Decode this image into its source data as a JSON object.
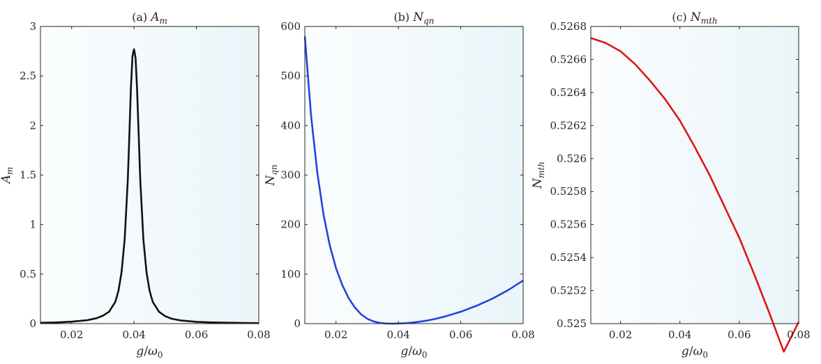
{
  "chart_data": [
    {
      "type": "line",
      "title_prefix": "(a)",
      "title_symbol": "A",
      "title_sub": "m",
      "xlabel_symbol": "g",
      "xlabel_sep": "/",
      "xlabel_denom": "ω",
      "xlabel_denom_sub": "0",
      "ylabel_symbol": "A",
      "ylabel_sub": "m",
      "xlim": [
        0.01,
        0.08
      ],
      "ylim": [
        0,
        3
      ],
      "xticks": [
        0.02,
        0.04,
        0.06,
        0.08
      ],
      "xtick_labels": [
        "0.02",
        "0.04",
        "0.06",
        "0.08"
      ],
      "yticks": [
        0,
        0.5,
        1,
        1.5,
        2,
        2.5,
        3
      ],
      "ytick_labels": [
        "0",
        "0.5",
        "1",
        "1.5",
        "2",
        "2.5",
        "3"
      ],
      "grid": false,
      "line_color": "#111111",
      "x": [
        0.01,
        0.015,
        0.02,
        0.025,
        0.028,
        0.03,
        0.032,
        0.034,
        0.035,
        0.036,
        0.037,
        0.038,
        0.0385,
        0.039,
        0.0395,
        0.04,
        0.0405,
        0.041,
        0.0415,
        0.042,
        0.043,
        0.044,
        0.045,
        0.046,
        0.048,
        0.05,
        0.052,
        0.055,
        0.06,
        0.065,
        0.07,
        0.075,
        0.08
      ],
      "y": [
        0.008,
        0.012,
        0.02,
        0.035,
        0.055,
        0.08,
        0.12,
        0.22,
        0.33,
        0.52,
        0.85,
        1.45,
        1.9,
        2.38,
        2.7,
        2.77,
        2.68,
        2.35,
        1.9,
        1.45,
        0.85,
        0.52,
        0.33,
        0.22,
        0.12,
        0.075,
        0.05,
        0.032,
        0.018,
        0.012,
        0.009,
        0.007,
        0.005
      ]
    },
    {
      "type": "line",
      "title_prefix": "(b)",
      "title_symbol": "N",
      "title_sub": "qn",
      "xlabel_symbol": "g",
      "xlabel_sep": "/",
      "xlabel_denom": "ω",
      "xlabel_denom_sub": "0",
      "ylabel_symbol": "N",
      "ylabel_sub": "qn",
      "xlim": [
        0.01,
        0.08
      ],
      "ylim": [
        0,
        600
      ],
      "xticks": [
        0.02,
        0.04,
        0.06,
        0.08
      ],
      "xtick_labels": [
        "0.02",
        "0.04",
        "0.06",
        "0.08"
      ],
      "yticks": [
        0,
        100,
        200,
        300,
        400,
        500,
        600
      ],
      "ytick_labels": [
        "0",
        "100",
        "200",
        "300",
        "400",
        "500",
        "600"
      ],
      "grid": false,
      "line_color": "#2244dd",
      "x": [
        0.01,
        0.012,
        0.014,
        0.016,
        0.018,
        0.02,
        0.022,
        0.024,
        0.026,
        0.028,
        0.03,
        0.032,
        0.034,
        0.036,
        0.038,
        0.04,
        0.042,
        0.044,
        0.046,
        0.048,
        0.05,
        0.052,
        0.055,
        0.06,
        0.065,
        0.07,
        0.075,
        0.08
      ],
      "y": [
        580,
        420,
        305,
        220,
        158,
        112,
        78,
        52,
        33,
        19,
        10,
        4.5,
        1.5,
        0.3,
        0,
        0.2,
        0.8,
        1.8,
        3.2,
        5,
        7.2,
        9.8,
        14.5,
        24,
        36,
        50,
        67,
        87
      ]
    },
    {
      "type": "line",
      "title_prefix": "(c)",
      "title_symbol": "N",
      "title_sub": "mth",
      "xlabel_symbol": "g",
      "xlabel_sep": "/",
      "xlabel_denom": "ω",
      "xlabel_denom_sub": "0",
      "ylabel_symbol": "N",
      "ylabel_sub": "mth",
      "xlim": [
        0.01,
        0.08
      ],
      "ylim": [
        0.525,
        0.5268
      ],
      "xticks": [
        0.02,
        0.04,
        0.06,
        0.08
      ],
      "xtick_labels": [
        "0.02",
        "0.04",
        "0.06",
        "0.08"
      ],
      "yticks": [
        0.525,
        0.5252,
        0.5254,
        0.5256,
        0.5258,
        0.526,
        0.5262,
        0.5264,
        0.5266,
        0.5268
      ],
      "ytick_labels": [
        "0.525",
        "0.5252",
        "0.5254",
        "0.5256",
        "0.5258",
        "0.526",
        "0.5262",
        "0.5264",
        "0.5266",
        "0.5268"
      ],
      "grid": false,
      "line_color": "#e01515",
      "x": [
        0.01,
        0.015,
        0.02,
        0.025,
        0.03,
        0.035,
        0.04,
        0.045,
        0.05,
        0.055,
        0.06,
        0.065,
        0.07,
        0.075,
        0.08
      ],
      "y": [
        0.52673,
        0.5267,
        0.52665,
        0.52657,
        0.52647,
        0.52636,
        0.52623,
        0.52607,
        0.5259,
        0.52571,
        0.52552,
        0.5253,
        0.52507,
        0.52483,
        0.52501
      ]
    }
  ]
}
